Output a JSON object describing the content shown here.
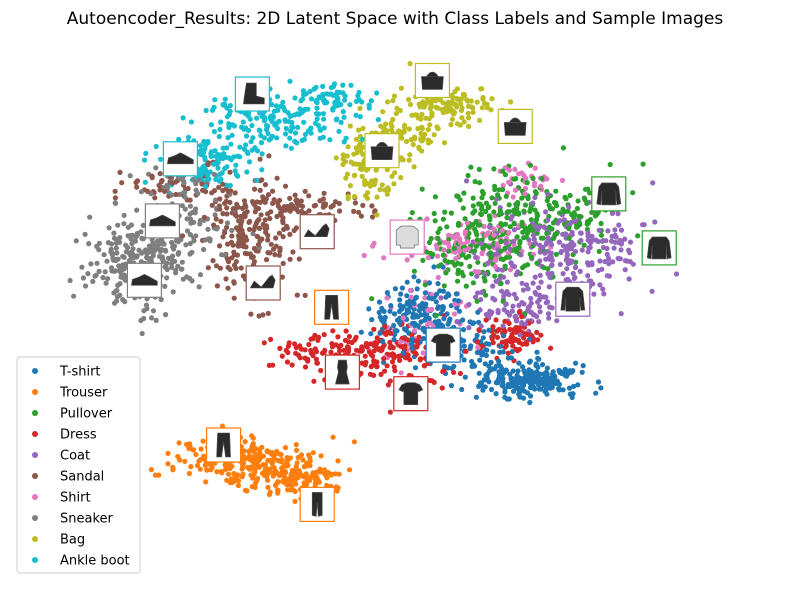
{
  "chart_data": {
    "type": "scatter",
    "title": "Autoencoder_Results: 2D Latent Space with Class Labels and Sample Images",
    "xlabel": "",
    "ylabel": "",
    "axes_visible": false,
    "grid": false,
    "legend_position": "lower-left",
    "x_range": [
      -10,
      10
    ],
    "y_range": [
      -10,
      10
    ],
    "series": [
      {
        "name": "T-shirt",
        "color": "#1f77b4",
        "clusters": [
          {
            "cx": 0.6,
            "cy": -0.2,
            "sx": 0.9,
            "sy": 1.0,
            "n": 200
          },
          {
            "cx": 3.6,
            "cy": -2.6,
            "sx": 1.0,
            "sy": 0.4,
            "n": 220
          },
          {
            "cx": 1.9,
            "cy": -1.4,
            "sx": 0.8,
            "sy": 0.6,
            "n": 60
          }
        ],
        "thumbnail": {
          "x": 1.2,
          "y": -1.3,
          "kind": "tshirt"
        }
      },
      {
        "name": "Trouser",
        "color": "#ff7f0e",
        "clusters": [
          {
            "cx": -4.3,
            "cy": -5.6,
            "sx": 1.3,
            "sy": 0.6,
            "n": 250
          },
          {
            "cx": -2.8,
            "cy": -6.3,
            "sx": 0.9,
            "sy": 0.4,
            "n": 110
          }
        ],
        "thumbnail": {
          "x": -1.9,
          "y": 0.1,
          "kind": "trouser"
        },
        "thumbnail_2": {
          "x": -4.9,
          "y": -5.0,
          "kind": "trouser"
        },
        "thumbnail_3": {
          "x": -2.3,
          "y": -7.2,
          "kind": "leggings"
        }
      },
      {
        "name": "Pullover",
        "color": "#2ca02c",
        "clusters": [
          {
            "cx": 3.4,
            "cy": 3.6,
            "sx": 1.8,
            "sy": 1.0,
            "n": 250
          },
          {
            "cx": 2.1,
            "cy": 1.8,
            "sx": 1.3,
            "sy": 1.0,
            "n": 120
          }
        ],
        "thumbnail": {
          "x": 5.8,
          "y": 4.3,
          "kind": "pullover"
        },
        "thumbnail_2": {
          "x": 7.2,
          "y": 2.3,
          "kind": "pullover"
        }
      },
      {
        "name": "Dress",
        "color": "#d62728",
        "clusters": [
          {
            "cx": -1.4,
            "cy": -1.5,
            "sx": 1.5,
            "sy": 0.5,
            "n": 150
          },
          {
            "cx": 0.0,
            "cy": -1.9,
            "sx": 0.9,
            "sy": 0.9,
            "n": 90
          },
          {
            "cx": 3.1,
            "cy": -1.0,
            "sx": 0.6,
            "sy": 0.5,
            "n": 80
          }
        ],
        "thumbnail": {
          "x": -1.6,
          "y": -2.3,
          "kind": "dress"
        },
        "thumbnail_2": {
          "x": 0.3,
          "y": -3.1,
          "kind": "tshirt"
        }
      },
      {
        "name": "Coat",
        "color": "#9467bd",
        "clusters": [
          {
            "cx": 4.6,
            "cy": 2.2,
            "sx": 1.8,
            "sy": 1.2,
            "n": 260
          },
          {
            "cx": 3.3,
            "cy": 0.2,
            "sx": 0.9,
            "sy": 0.7,
            "n": 90
          }
        ],
        "thumbnail": {
          "x": 4.8,
          "y": 0.4,
          "kind": "coat"
        }
      },
      {
        "name": "Sandal",
        "color": "#8c564b",
        "clusters": [
          {
            "cx": -4.2,
            "cy": 2.4,
            "sx": 1.0,
            "sy": 1.4,
            "n": 190
          },
          {
            "cx": -2.9,
            "cy": 3.8,
            "sx": 1.4,
            "sy": 0.4,
            "n": 90
          },
          {
            "cx": -6.0,
            "cy": 4.6,
            "sx": 1.1,
            "sy": 0.5,
            "n": 60
          }
        ],
        "thumbnail": {
          "x": -2.3,
          "y": 2.9,
          "kind": "sandal"
        },
        "thumbnail_2": {
          "x": -3.8,
          "y": 1.0,
          "kind": "sandal"
        }
      },
      {
        "name": "Shirt",
        "color": "#e377c2",
        "clusters": [
          {
            "cx": 1.8,
            "cy": 2.4,
            "sx": 1.2,
            "sy": 0.6,
            "n": 110
          },
          {
            "cx": 0.8,
            "cy": -0.8,
            "sx": 0.9,
            "sy": 0.9,
            "n": 60
          },
          {
            "cx": 3.4,
            "cy": 4.8,
            "sx": 0.5,
            "sy": 0.4,
            "n": 30
          }
        ],
        "thumbnail": {
          "x": 0.2,
          "y": 2.7,
          "kind": "shirt"
        }
      },
      {
        "name": "Sneaker",
        "color": "#7f7f7f",
        "clusters": [
          {
            "cx": -7.3,
            "cy": 1.7,
            "sx": 0.9,
            "sy": 1.0,
            "n": 230
          },
          {
            "cx": -6.0,
            "cy": 2.8,
            "sx": 1.1,
            "sy": 0.9,
            "n": 80
          },
          {
            "cx": -6.2,
            "cy": 4.7,
            "sx": 0.7,
            "sy": 0.7,
            "n": 40
          }
        ],
        "thumbnail": {
          "x": -6.6,
          "y": 3.3,
          "kind": "sneaker"
        },
        "thumbnail_2": {
          "x": -7.1,
          "y": 1.1,
          "kind": "sneaker"
        }
      },
      {
        "name": "Bag",
        "color": "#bcbd22",
        "clusters": [
          {
            "cx": 1.3,
            "cy": 7.6,
            "sx": 0.9,
            "sy": 0.6,
            "n": 130
          },
          {
            "cx": -0.8,
            "cy": 5.5,
            "sx": 0.6,
            "sy": 0.9,
            "n": 110
          },
          {
            "cx": 0.3,
            "cy": 6.4,
            "sx": 0.6,
            "sy": 0.5,
            "n": 50
          }
        ],
        "thumbnail": {
          "x": 0.9,
          "y": 8.5,
          "kind": "bag"
        },
        "thumbnail_2": {
          "x": -0.5,
          "y": 5.9,
          "kind": "bag"
        },
        "thumbnail_3": {
          "x": 3.2,
          "y": 6.8,
          "kind": "bag"
        }
      },
      {
        "name": "Ankle boot",
        "color": "#17becf",
        "clusters": [
          {
            "cx": -3.6,
            "cy": 7.0,
            "sx": 1.3,
            "sy": 0.6,
            "n": 170
          },
          {
            "cx": -5.4,
            "cy": 5.5,
            "sx": 1.0,
            "sy": 0.6,
            "n": 130
          },
          {
            "cx": -2.0,
            "cy": 7.8,
            "sx": 0.8,
            "sy": 0.4,
            "n": 60
          }
        ],
        "thumbnail": {
          "x": -4.1,
          "y": 8.0,
          "kind": "boot"
        },
        "thumbnail_2": {
          "x": -6.1,
          "y": 5.6,
          "kind": "sneaker"
        }
      }
    ]
  }
}
